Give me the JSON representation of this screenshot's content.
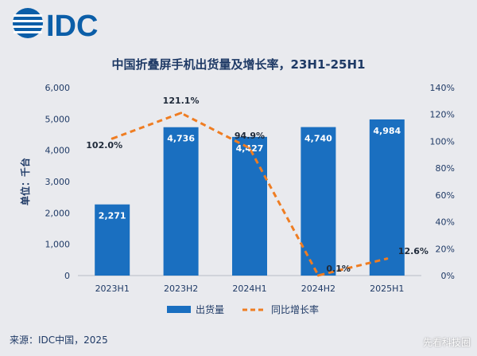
{
  "brand": {
    "logo_text": "IDC"
  },
  "chart_data": {
    "type": "bar",
    "title": "中国折叠屏手机出货量及增长率，23H1-25H1",
    "ylabel": "单位：千台",
    "categories": [
      "2023H1",
      "2023H2",
      "2024H1",
      "2024H2",
      "2025H1"
    ],
    "series": [
      {
        "name": "出货量",
        "type": "bar",
        "axis": "left",
        "values": [
          2271,
          4736,
          4427,
          4740,
          4984
        ],
        "labels": [
          "2,271",
          "4,736",
          "4,427",
          "4,740",
          "4,984"
        ]
      },
      {
        "name": "同比增长率",
        "type": "line",
        "axis": "right",
        "style": "dashed",
        "values": [
          102.0,
          121.1,
          94.9,
          0.1,
          12.6
        ],
        "labels": [
          "102.0%",
          "121.1%",
          "94.9%",
          "0.1%",
          "12.6%"
        ]
      }
    ],
    "ylim": [
      0,
      6000
    ],
    "y_ticks": [
      "0",
      "1,000",
      "2,000",
      "3,000",
      "4,000",
      "5,000",
      "6,000"
    ],
    "y2lim": [
      0,
      140
    ],
    "y2_ticks": [
      "0%",
      "20%",
      "40%",
      "60%",
      "80%",
      "100%",
      "120%",
      "140%"
    ],
    "grid": false,
    "legend_position": "bottom-center",
    "colors": {
      "bar": "#1a6fc0",
      "line": "#ef7d22",
      "text": "#1f3a66",
      "axis": "#b7bcc6"
    }
  },
  "footer": {
    "source": "来源：IDC中国，2025",
    "watermark": "先看科技圈"
  }
}
